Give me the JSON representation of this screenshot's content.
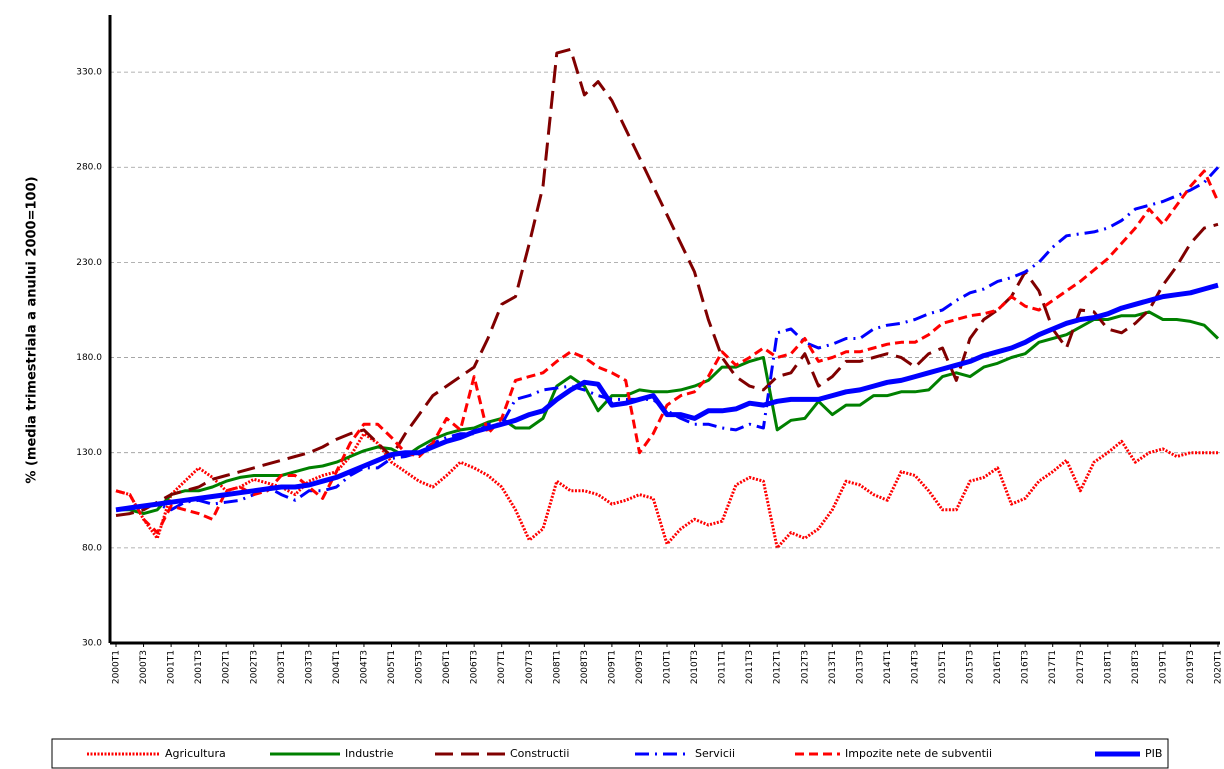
{
  "chart_data": {
    "type": "line",
    "y_label": "% (media trimestriala a anului 2000=100)",
    "categories": [
      "2000T1",
      null,
      "2000T3",
      null,
      "2001T1",
      null,
      "2001T3",
      null,
      "2002T1",
      null,
      "2002T3",
      null,
      "2003T1",
      null,
      "2003T3",
      null,
      "2004T1",
      null,
      "2004T3",
      null,
      "2005T1",
      null,
      "2005T3",
      null,
      "2006T1",
      null,
      "2006T3",
      null,
      "2007T1",
      null,
      "2007T3",
      null,
      "2008T1",
      null,
      "2008T3",
      null,
      "2009T1",
      null,
      "2009T3",
      null,
      "2010T1",
      null,
      "2010T3",
      null,
      "2011T1",
      null,
      "2011T3",
      null,
      "2012T1",
      null,
      "2012T3",
      null,
      "2013T1",
      null,
      "2013T3",
      null,
      "2014T1",
      null,
      "2014T3",
      null,
      "2015T1",
      null,
      "2015T3",
      null,
      "2016T1",
      null,
      "2016T3",
      null,
      "2017T1",
      null,
      "2017T3",
      null,
      "2018T1",
      null,
      "2018T3",
      null,
      "2019T1",
      null,
      "2019T3",
      null,
      "2020T1"
    ],
    "ylim": [
      30,
      360
    ],
    "yticks": [
      {
        "value": 30,
        "label": "30.0"
      },
      {
        "value": 80,
        "label": "80.0"
      },
      {
        "value": 130,
        "label": "130.0"
      },
      {
        "value": 180,
        "label": "180.0"
      },
      {
        "value": 230,
        "label": "230.0"
      },
      {
        "value": 280,
        "label": "280.0"
      },
      {
        "value": 330,
        "label": "330.0"
      }
    ],
    "grid": true,
    "legend": "bottom",
    "series": [
      {
        "name": "Agricultura",
        "color": "#ff0000",
        "line_style": "dotted",
        "values": [
          110,
          108,
          95,
          85,
          108,
          115,
          122,
          117,
          110,
          112,
          116,
          114,
          112,
          108,
          115,
          118,
          120,
          128,
          140,
          135,
          125,
          120,
          115,
          112,
          118,
          125,
          122,
          118,
          112,
          100,
          84,
          90,
          115,
          110,
          110,
          108,
          103,
          105,
          108,
          106,
          82,
          90,
          95,
          92,
          94,
          113,
          117,
          115,
          80,
          88,
          85,
          90,
          100,
          115,
          113,
          108,
          105,
          120,
          118,
          110,
          100,
          100,
          115,
          117,
          122,
          103,
          106,
          115,
          120,
          126,
          110,
          125,
          130,
          136,
          125,
          130,
          132,
          128,
          130,
          130,
          130
        ]
      },
      {
        "name": "Industrie",
        "color": "#008000",
        "line_style": "solid",
        "values": [
          100,
          100,
          98,
          100,
          108,
          110,
          110,
          112,
          115,
          117,
          118,
          118,
          118,
          120,
          122,
          123,
          125,
          128,
          131,
          133,
          132,
          128,
          133,
          137,
          140,
          142,
          143,
          146,
          148,
          143,
          143,
          148,
          165,
          170,
          165,
          152,
          160,
          160,
          163,
          162,
          162,
          163,
          165,
          168,
          175,
          175,
          178,
          180,
          142,
          147,
          148,
          157,
          150,
          155,
          155,
          160,
          160,
          162,
          162,
          163,
          170,
          172,
          170,
          175,
          177,
          180,
          182,
          188,
          190,
          192,
          196,
          200,
          200,
          202,
          202,
          204,
          200,
          200,
          199,
          197,
          190
        ]
      },
      {
        "name": "Constructii",
        "color": "#800000",
        "line_style": "longdash",
        "values": [
          97,
          98,
          100,
          104,
          108,
          110,
          112,
          116,
          118,
          120,
          122,
          124,
          126,
          128,
          130,
          133,
          137,
          140,
          142,
          135,
          128,
          140,
          150,
          160,
          165,
          170,
          175,
          190,
          208,
          212,
          240,
          270,
          340,
          342,
          318,
          325,
          315,
          300,
          285,
          270,
          255,
          240,
          225,
          200,
          180,
          170,
          165,
          163,
          170,
          172,
          182,
          165,
          170,
          178,
          178,
          180,
          182,
          180,
          175,
          182,
          185,
          168,
          190,
          200,
          205,
          212,
          225,
          215,
          195,
          185,
          205,
          204,
          195,
          193,
          198,
          205,
          218,
          228,
          240,
          248,
          250
        ]
      },
      {
        "name": "Servicii",
        "color": "#0000ff",
        "line_style": "dashdot",
        "values": [
          100,
          101,
          102,
          103,
          100,
          104,
          105,
          103,
          104,
          105,
          108,
          112,
          108,
          105,
          110,
          110,
          112,
          118,
          122,
          122,
          127,
          128,
          130,
          135,
          138,
          140,
          140,
          145,
          145,
          158,
          160,
          163,
          164,
          165,
          163,
          160,
          158,
          158,
          158,
          158,
          152,
          148,
          145,
          145,
          143,
          142,
          145,
          143,
          193,
          195,
          188,
          185,
          187,
          190,
          190,
          195,
          197,
          198,
          200,
          203,
          205,
          210,
          214,
          216,
          220,
          222,
          225,
          230,
          238,
          244,
          245,
          246,
          248,
          252,
          258,
          260,
          262,
          265,
          268,
          272,
          280
        ]
      },
      {
        "name": "Impozite nete de subventii",
        "color": "#ff0000",
        "line_style": "dashed",
        "values": [
          110,
          108,
          95,
          88,
          102,
          100,
          98,
          95,
          110,
          112,
          108,
          110,
          118,
          118,
          112,
          106,
          120,
          135,
          145,
          145,
          138,
          130,
          128,
          135,
          148,
          142,
          170,
          140,
          148,
          168,
          170,
          172,
          178,
          183,
          180,
          175,
          172,
          168,
          130,
          140,
          155,
          160,
          162,
          170,
          183,
          176,
          180,
          185,
          180,
          182,
          190,
          178,
          180,
          183,
          183,
          185,
          187,
          188,
          188,
          192,
          198,
          200,
          202,
          203,
          205,
          212,
          207,
          205,
          210,
          215,
          220,
          226,
          232,
          240,
          248,
          258,
          250,
          260,
          270,
          278,
          262
        ]
      },
      {
        "name": "PIB",
        "color": "#0000ff",
        "line_style": "thick",
        "values": [
          100,
          101,
          102,
          103,
          104,
          105,
          106,
          107,
          108,
          109,
          110,
          111,
          112,
          112,
          113,
          115,
          117,
          120,
          123,
          126,
          129,
          130,
          130,
          133,
          136,
          138,
          141,
          143,
          145,
          147,
          150,
          152,
          158,
          163,
          167,
          166,
          155,
          156,
          158,
          160,
          150,
          150,
          148,
          152,
          152,
          153,
          156,
          155,
          157,
          158,
          158,
          158,
          160,
          162,
          163,
          165,
          167,
          168,
          170,
          172,
          174,
          176,
          178,
          181,
          183,
          185,
          188,
          192,
          195,
          198,
          200,
          201,
          203,
          206,
          208,
          210,
          212,
          213,
          214,
          216,
          218
        ]
      }
    ]
  }
}
